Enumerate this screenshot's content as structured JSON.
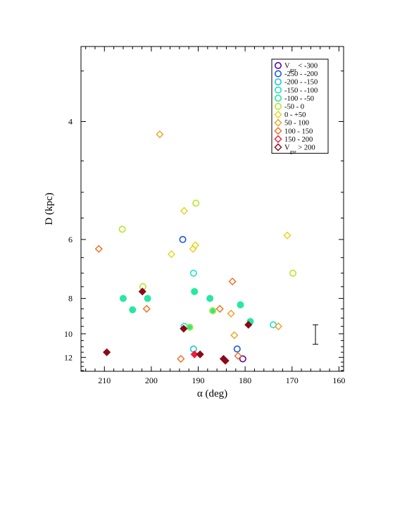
{
  "chart_data": {
    "type": "scatter",
    "xlabel": "α (deg)",
    "ylabel": "D (kpc)",
    "xlim": [
      215,
      159
    ],
    "ylim": [
      3.3,
      13.6
    ],
    "y_scale": "reciprocal",
    "x_ticks": [
      210,
      200,
      190,
      180,
      170,
      160
    ],
    "y_ticks": [
      4,
      6,
      8,
      10,
      12
    ],
    "x_minor_step": 2,
    "y_minor_ticks": [
      3.5,
      4.5,
      5,
      5.5,
      6.5,
      7,
      7.5,
      8.5,
      9,
      9.5,
      10.5,
      11,
      11.5,
      12.5,
      13,
      13.5
    ],
    "legend_position": "top-right",
    "grid": false,
    "legend_entries": [
      {
        "label_main": "V",
        "label_sub": "gsr",
        "label_rest": " < -300",
        "color": "#5b0a9e",
        "marker": "circle"
      },
      {
        "label_main": "-250  -  -200",
        "color": "#1a55e0",
        "marker": "circle"
      },
      {
        "label_main": "-200  -  -150",
        "color": "#18c8d8",
        "marker": "circle"
      },
      {
        "label_main": "-150  -  -100",
        "color": "#22e0c8",
        "marker": "circle"
      },
      {
        "label_main": "-100  -   -50",
        "color": "#27e8a0",
        "marker": "circle"
      },
      {
        "label_main": "-50   -     0",
        "color": "#b4e82a",
        "marker": "circle"
      },
      {
        "label_main": "0   -   +50",
        "color": "#e6d21c",
        "marker": "diamond"
      },
      {
        "label_main": "50   -   100",
        "color": "#f0a020",
        "marker": "diamond"
      },
      {
        "label_main": "100   -   150",
        "color": "#f06a1a",
        "marker": "diamond"
      },
      {
        "label_main": "150   -   200",
        "color": "#ee1c3c",
        "marker": "diamond"
      },
      {
        "label_main": "V",
        "label_sub": "gsr",
        "label_rest": " > 200",
        "color": "#8a0a1a",
        "marker": "diamond"
      }
    ],
    "series": [
      {
        "color": "#5b0a9e",
        "marker": "circle",
        "filled": false,
        "points": [
          [
            180.5,
            12.15
          ]
        ]
      },
      {
        "color": "#1a55e0",
        "marker": "circle",
        "filled": false,
        "points": [
          [
            193.3,
            6.0
          ],
          [
            181.7,
            11.2
          ]
        ]
      },
      {
        "color": "#18c8d8",
        "marker": "circle",
        "filled": false,
        "points": [
          [
            191.0,
            11.2
          ]
        ]
      },
      {
        "color": "#22e0c8",
        "marker": "circle",
        "filled": false,
        "points": [
          [
            191.0,
            7.0
          ],
          [
            193.0,
            9.5
          ],
          [
            174.0,
            9.4
          ]
        ]
      },
      {
        "color": "#27e8a0",
        "marker": "circle",
        "filled": true,
        "points": [
          [
            206.0,
            8.0
          ],
          [
            200.8,
            8.0
          ],
          [
            204.0,
            8.55
          ],
          [
            190.8,
            7.7
          ],
          [
            187.5,
            8.0
          ],
          [
            181.0,
            8.3
          ],
          [
            178.9,
            9.2
          ],
          [
            186.9,
            8.6
          ],
          [
            191.8,
            9.55
          ]
        ]
      },
      {
        "color": "#b4e82a",
        "marker": "circle",
        "filled": false,
        "points": [
          [
            190.5,
            5.2
          ],
          [
            206.2,
            5.75
          ],
          [
            201.8,
            7.5
          ],
          [
            169.8,
            7.0
          ],
          [
            191.8,
            9.55
          ],
          [
            186.9,
            8.6
          ]
        ]
      },
      {
        "color": "#e6d21c",
        "marker": "diamond",
        "filled": false,
        "points": [
          [
            193.0,
            5.35
          ],
          [
            190.6,
            6.15
          ],
          [
            191.1,
            6.25
          ],
          [
            195.7,
            6.4
          ],
          [
            171.0,
            5.9
          ]
        ]
      },
      {
        "color": "#f0a020",
        "marker": "diamond",
        "filled": false,
        "points": [
          [
            198.2,
            4.15
          ],
          [
            183.0,
            8.75
          ],
          [
            182.3,
            10.1
          ],
          [
            172.9,
            9.5
          ]
        ]
      },
      {
        "color": "#f06a1a",
        "marker": "diamond",
        "filled": false,
        "points": [
          [
            211.2,
            6.25
          ],
          [
            201.0,
            8.5
          ],
          [
            185.4,
            8.5
          ],
          [
            182.7,
            7.3
          ],
          [
            181.5,
            11.85
          ],
          [
            193.7,
            12.15
          ]
        ]
      },
      {
        "color": "#ee1c3c",
        "marker": "diamond",
        "filled": true,
        "points": [
          [
            190.8,
            11.7
          ]
        ]
      },
      {
        "color": "#8a0a1a",
        "marker": "diamond",
        "filled": true,
        "points": [
          [
            201.9,
            7.7
          ],
          [
            193.1,
            9.65
          ],
          [
            179.3,
            9.4
          ],
          [
            209.5,
            11.5
          ],
          [
            189.6,
            11.7
          ],
          [
            184.6,
            12.15
          ],
          [
            184.2,
            12.35
          ]
        ]
      }
    ],
    "error_bar": {
      "x": 165.0,
      "y_low": 9.4,
      "y_high": 10.8
    }
  }
}
